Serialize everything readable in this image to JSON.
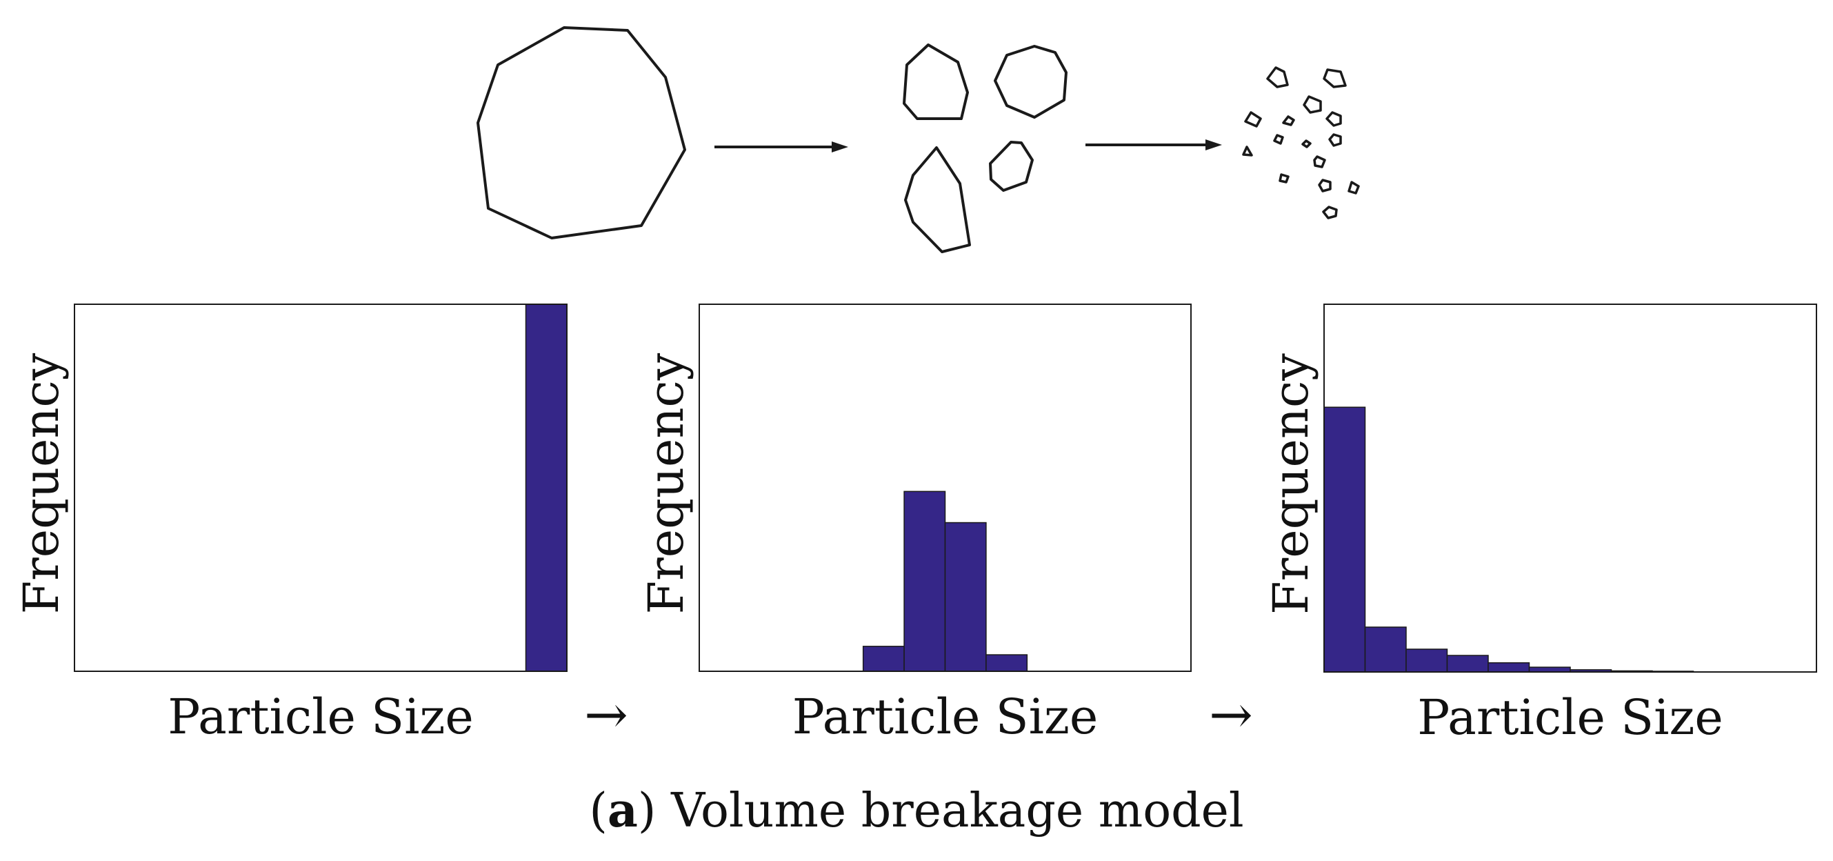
{
  "caption": {
    "label": "a",
    "text": "Volume breakage model"
  },
  "colors": {
    "bar": "#352688",
    "stroke": "#1a1a1a"
  },
  "arrow_glyph": "→",
  "chart_data": [
    {
      "type": "bar",
      "xlabel": "Particle Size",
      "ylabel": "Frequency",
      "bins": 12,
      "values": [
        0,
        0,
        0,
        0,
        0,
        0,
        0,
        0,
        0,
        0,
        0,
        1.0
      ],
      "ylim": [
        0,
        1.0
      ],
      "grid": false
    },
    {
      "type": "bar",
      "xlabel": "Particle Size",
      "ylabel": "Frequency",
      "bins": 12,
      "values": [
        0,
        0,
        0,
        0,
        0.068,
        0.49,
        0.405,
        0.045,
        0,
        0,
        0,
        0
      ],
      "ylim": [
        0,
        1.0
      ],
      "grid": false
    },
    {
      "type": "bar",
      "xlabel": "Particle Size",
      "ylabel": "Frequency",
      "bins": 12,
      "values": [
        0.72,
        0.122,
        0.062,
        0.045,
        0.025,
        0.013,
        0.006,
        0.003,
        0.002,
        0,
        0,
        0
      ],
      "ylim": [
        0,
        1.0
      ],
      "grid": false
    }
  ]
}
